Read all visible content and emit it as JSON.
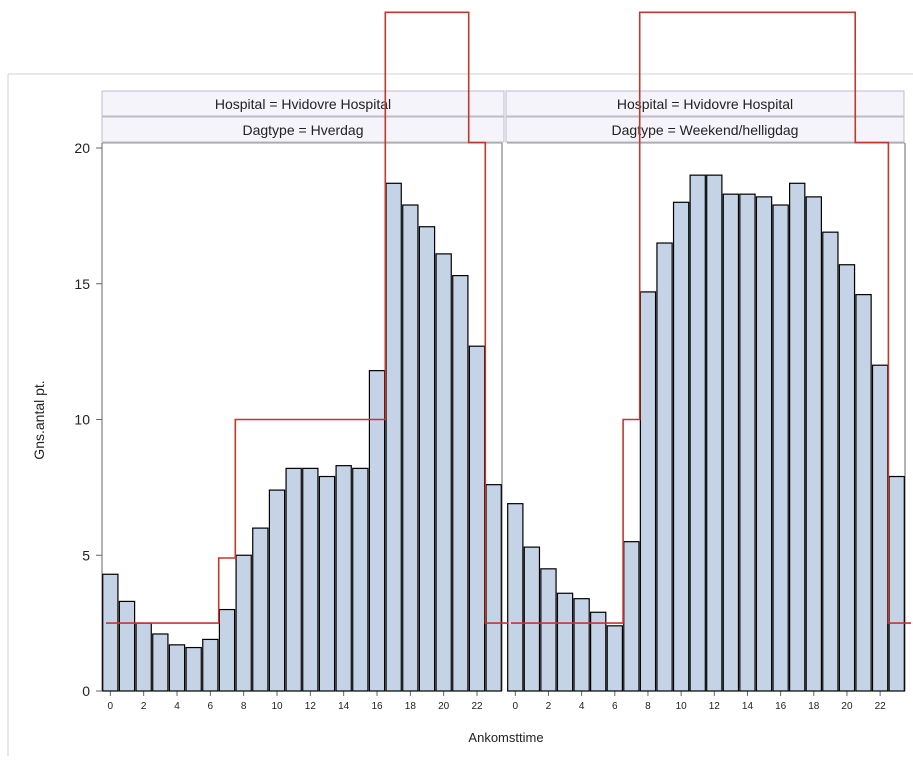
{
  "chart_data": {
    "type": "bar",
    "layout": "two-panel",
    "xlabel": "Ankomsttime",
    "ylabel": "Gns.antal pt.",
    "ylim": [
      0,
      20
    ],
    "yticks": [
      0,
      5,
      10,
      15,
      20
    ],
    "xticks": [
      0,
      2,
      4,
      6,
      8,
      10,
      12,
      14,
      16,
      18,
      20,
      22
    ],
    "categories": [
      0,
      1,
      2,
      3,
      4,
      5,
      6,
      7,
      8,
      9,
      10,
      11,
      12,
      13,
      14,
      15,
      16,
      17,
      18,
      19,
      20,
      21,
      22,
      23
    ],
    "colors": {
      "bar_fill": "#c5d3e6",
      "bar_edge": "#000000",
      "step_line": "#c0392b"
    },
    "panels": [
      {
        "header_hospital": "Hospital = Hvidovre Hospital",
        "header_daytype": "Dagtype = Hverdag",
        "values": [
          4.3,
          3.3,
          2.5,
          2.1,
          1.7,
          1.6,
          1.9,
          3.0,
          5.0,
          6.0,
          7.4,
          8.2,
          8.2,
          7.9,
          8.3,
          8.2,
          11.8,
          18.7,
          17.9,
          17.1,
          16.1,
          15.3,
          12.7,
          7.6
        ],
        "step_line": [
          2.5,
          2.5,
          2.5,
          2.5,
          2.5,
          2.5,
          2.5,
          4.9,
          10.0,
          10.0,
          10.0,
          10.0,
          10.0,
          10.0,
          10.0,
          10.0,
          10.0,
          25.0,
          25.0,
          25.0,
          25.0,
          25.0,
          20.2,
          2.5
        ]
      },
      {
        "header_hospital": "Hospital = Hvidovre Hospital",
        "header_daytype": "Dagtype = Weekend/helligdag",
        "values": [
          6.9,
          5.3,
          4.5,
          3.6,
          3.4,
          2.9,
          2.4,
          5.5,
          14.7,
          16.5,
          18.0,
          19.0,
          19.0,
          18.3,
          18.3,
          18.2,
          17.9,
          18.7,
          18.2,
          16.9,
          15.7,
          14.6,
          12.0,
          7.9
        ],
        "step_line": [
          2.5,
          2.5,
          2.5,
          2.5,
          2.5,
          2.5,
          2.5,
          10.0,
          25.0,
          25.0,
          25.0,
          25.0,
          25.0,
          25.0,
          25.0,
          25.0,
          25.0,
          25.0,
          25.0,
          25.0,
          25.0,
          20.2,
          20.2,
          2.5
        ]
      }
    ]
  }
}
